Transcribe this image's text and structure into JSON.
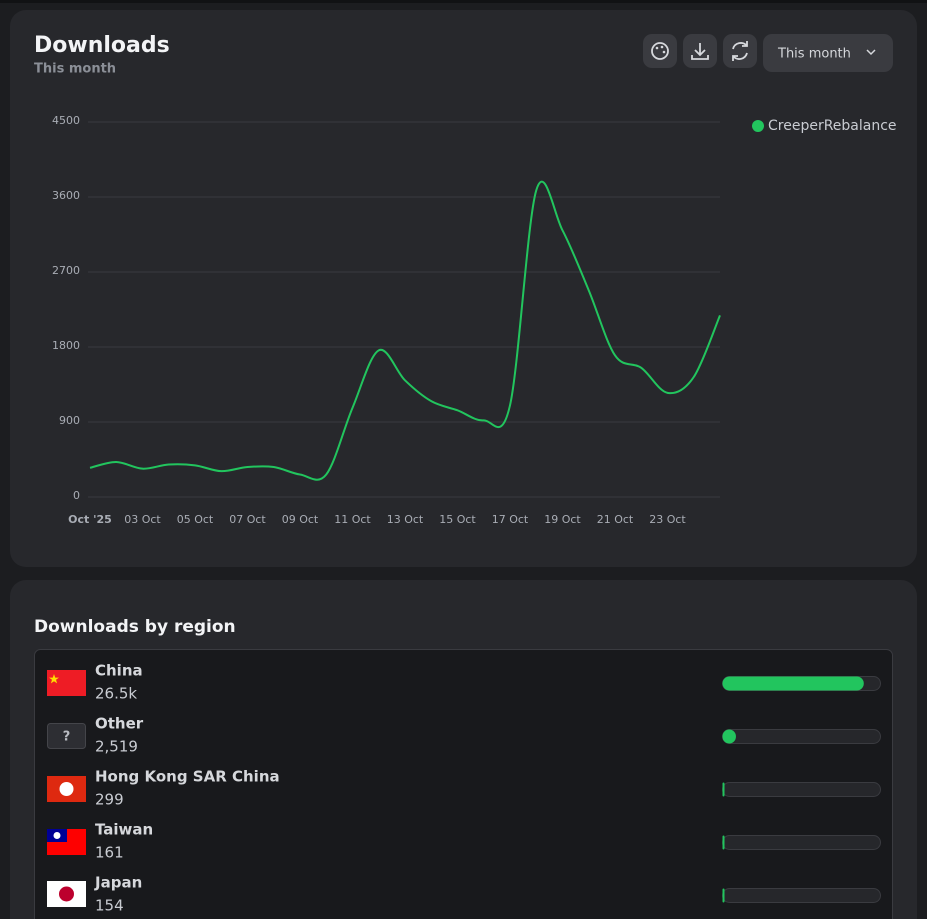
{
  "header": {
    "title": "Downloads",
    "subtitle": "This month",
    "range_button": "This month"
  },
  "chart_data": {
    "type": "line",
    "categories": [
      "Oct '25",
      null,
      "03 Oct",
      null,
      "05 Oct",
      null,
      "07 Oct",
      null,
      "09 Oct",
      null,
      "11 Oct",
      null,
      "13 Oct",
      null,
      "15 Oct",
      null,
      "17 Oct",
      null,
      "19 Oct",
      null,
      "21 Oct",
      null,
      "23 Oct",
      null,
      null
    ],
    "series": [
      {
        "name": "CreeperRebalance",
        "color": "#22c55e",
        "values": [
          350,
          420,
          340,
          390,
          380,
          310,
          360,
          360,
          270,
          270,
          1070,
          1760,
          1400,
          1150,
          1040,
          920,
          1100,
          3680,
          3200,
          2480,
          1700,
          1550,
          1250,
          1440,
          2180
        ]
      }
    ],
    "ylim": [
      0,
      4500
    ],
    "yticks": [
      0,
      900,
      1800,
      2700,
      3600,
      4500
    ],
    "grid": true,
    "legend": "top-right"
  },
  "region_card": {
    "title": "Downloads by region",
    "bar_color": "#22c55e",
    "rows": [
      {
        "name": "China",
        "value": 26500,
        "value_label": "26.5k"
      },
      {
        "name": "Other",
        "icon": "?",
        "value": 2519,
        "value_label": "2,519"
      },
      {
        "name": "Hong Kong SAR China",
        "value": 299
      },
      {
        "name": "Taiwan",
        "value": 161
      },
      {
        "name": "Japan",
        "value": 154
      }
    ]
  }
}
